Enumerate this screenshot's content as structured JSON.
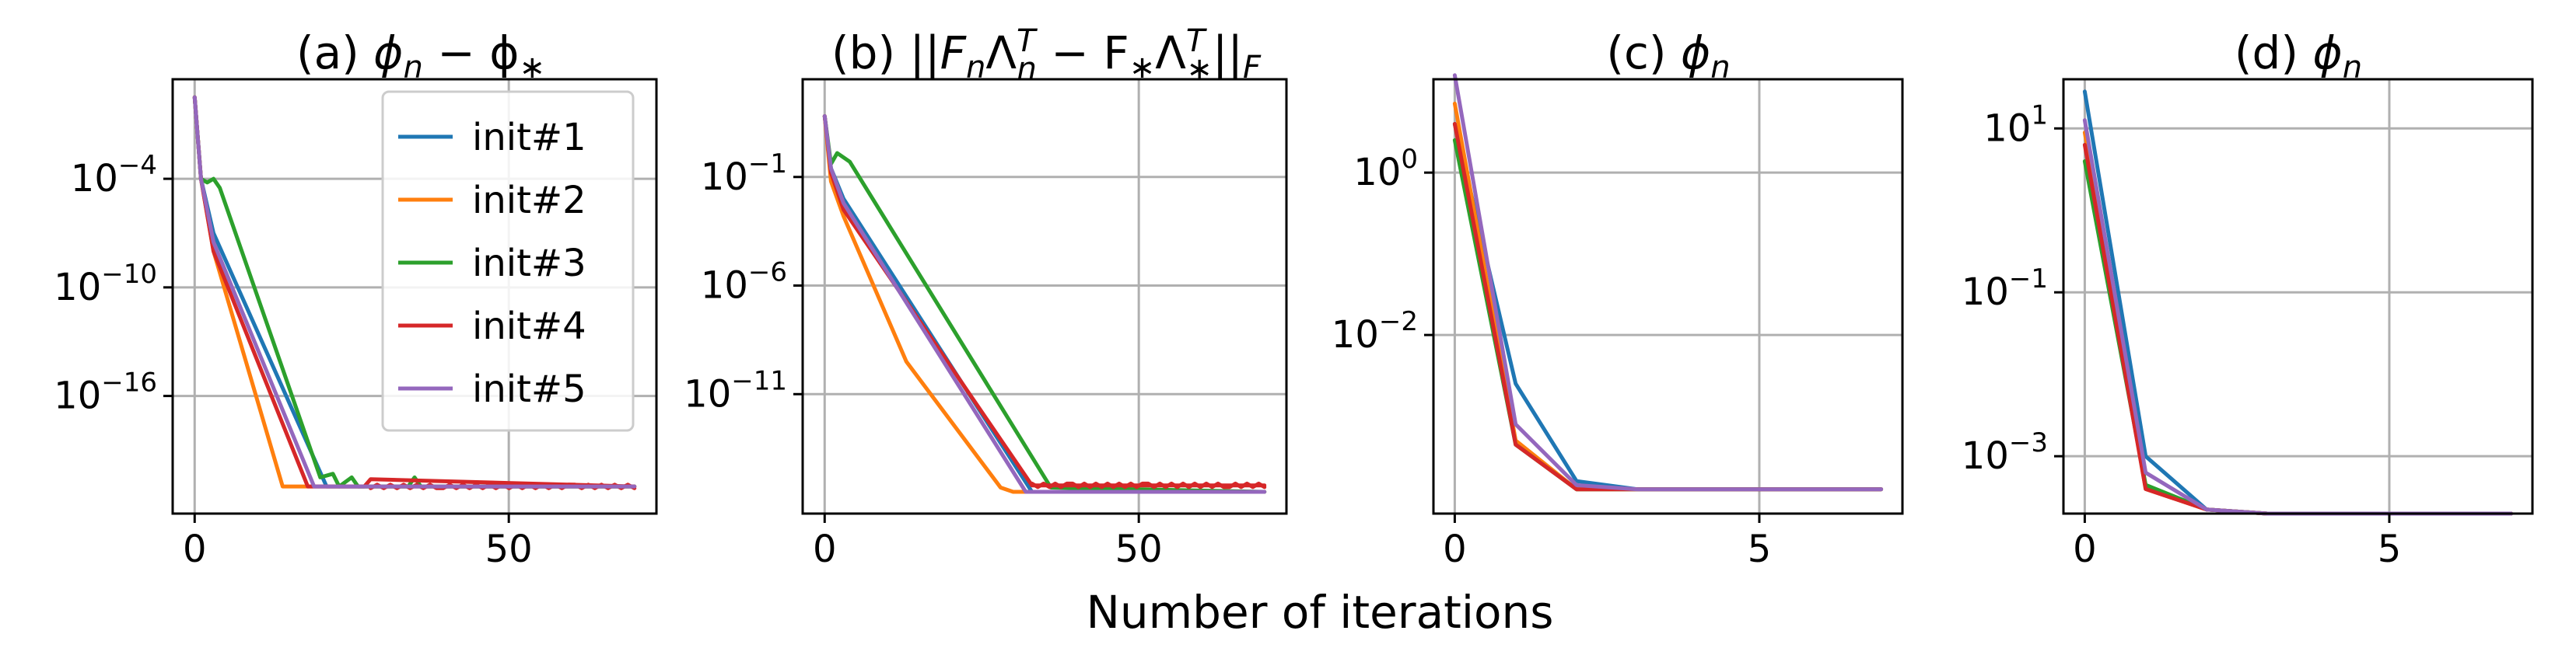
{
  "figure": {
    "xlabel": "Number of iterations"
  },
  "chart_data": [
    {
      "type": "line",
      "title": "(a) ϕn − ϕ∗",
      "title_parts": {
        "prefix": "(a) ",
        "phi": "ϕ",
        "sub1": "n",
        "minus": " − ϕ",
        "sub2": "∗"
      },
      "xlabel": "",
      "ylabel": "",
      "yscale": "log",
      "xlim": [
        -3.5,
        73.5
      ],
      "ylim_log10": [
        -22.5,
        1.5
      ],
      "xticks": [
        0,
        50
      ],
      "xtick_labels": [
        "0",
        "50"
      ],
      "yticks_log10": [
        -4,
        -10,
        -16
      ],
      "ytick_labels": [
        {
          "base": "10",
          "exp": "−4"
        },
        {
          "base": "10",
          "exp": "−10"
        },
        {
          "base": "10",
          "exp": "−16"
        }
      ],
      "legend": {
        "position": "upper-right"
      },
      "series": [
        {
          "name": "init#1",
          "color": "#1f77b4",
          "x": [
            0,
            1,
            3,
            21,
            70
          ],
          "log10_y": [
            0.5,
            -4,
            -7,
            -21,
            -21
          ]
        },
        {
          "name": "init#2",
          "color": "#ff7f0e",
          "x": [
            0,
            1,
            3,
            14,
            70
          ],
          "log10_y": [
            0.5,
            -4,
            -8,
            -21,
            -21
          ]
        },
        {
          "name": "init#3",
          "color": "#2ca02c",
          "x": [
            0,
            1,
            2,
            3,
            4,
            20,
            22,
            23,
            25,
            26,
            27,
            34,
            35,
            36,
            70
          ],
          "log10_y": [
            0.5,
            -4,
            -4.2,
            -4,
            -4.5,
            -20.5,
            -20.3,
            -21,
            -20.5,
            -21,
            -21,
            -21,
            -20.5,
            -21,
            -21
          ]
        },
        {
          "name": "init#4",
          "color": "#d62728",
          "x": [
            0,
            1,
            3,
            18,
            27,
            28,
            70
          ],
          "log10_y": [
            0.5,
            -4,
            -8,
            -21,
            -21,
            -20.6,
            -21
          ],
          "tail_wiggle": true
        },
        {
          "name": "init#5",
          "color": "#9467bd",
          "x": [
            0,
            1,
            3,
            19,
            70
          ],
          "log10_y": [
            0.5,
            -4,
            -7.5,
            -21,
            -21
          ]
        }
      ]
    },
    {
      "type": "line",
      "title": "(b) ||FnΛnT − F∗Λ∗T||F",
      "title_parts": {
        "t1": "(b) ||",
        "t2": "F",
        "t3": "n",
        "t4": "Λ",
        "t5": "T",
        "t6": "n",
        "t7": " − F",
        "t8": "∗",
        "t9": "Λ",
        "t10": "T",
        "t11": "∗",
        "t12": "||",
        "t13": "F"
      },
      "xlabel": "",
      "ylabel": "",
      "yscale": "log",
      "xlim": [
        -3.5,
        73.5
      ],
      "ylim_log10": [
        -16.5,
        3.5
      ],
      "xticks": [
        0,
        50
      ],
      "xtick_labels": [
        "0",
        "50"
      ],
      "yticks_log10": [
        -1,
        -6,
        -11
      ],
      "ytick_labels": [
        {
          "base": "10",
          "exp": "−1"
        },
        {
          "base": "10",
          "exp": "−6"
        },
        {
          "base": "10",
          "exp": "−11"
        }
      ],
      "series": [
        {
          "name": "init#1",
          "color": "#1f77b4",
          "x": [
            0,
            1,
            3,
            33,
            70
          ],
          "log10_y": [
            1.8,
            -0.6,
            -2,
            -15.5,
            -15.5
          ]
        },
        {
          "name": "init#2",
          "color": "#ff7f0e",
          "x": [
            0,
            1,
            3,
            13,
            28,
            30,
            70
          ],
          "log10_y": [
            1.8,
            -1.2,
            -2.8,
            -9.5,
            -15.3,
            -15.5,
            -15.5
          ]
        },
        {
          "name": "init#3",
          "color": "#2ca02c",
          "x": [
            0,
            1,
            2,
            4,
            36,
            70
          ],
          "log10_y": [
            1.8,
            -0.4,
            0.1,
            -0.3,
            -15.3,
            -15.5
          ]
        },
        {
          "name": "init#4",
          "color": "#d62728",
          "x": [
            0,
            1,
            3,
            33,
            70
          ],
          "log10_y": [
            1.8,
            -0.8,
            -2.5,
            -15.2,
            -15.2
          ],
          "tail_wiggle": true
        },
        {
          "name": "init#5",
          "color": "#9467bd",
          "x": [
            0,
            1,
            3,
            32,
            70
          ],
          "log10_y": [
            1.8,
            -0.6,
            -2.2,
            -15.5,
            -15.5
          ]
        }
      ]
    },
    {
      "type": "line",
      "title": "(c) ϕn",
      "title_parts": {
        "prefix": "(c) ",
        "phi": "ϕ",
        "sub1": "n"
      },
      "xlabel": "",
      "ylabel": "",
      "yscale": "log",
      "xlim": [
        -0.35,
        7.35
      ],
      "ylim_log10": [
        -4.2,
        1.15
      ],
      "xticks": [
        0,
        5
      ],
      "xtick_labels": [
        "0",
        "5"
      ],
      "yticks_log10": [
        0,
        -2
      ],
      "ytick_labels": [
        {
          "base": "10",
          "exp": "0"
        },
        {
          "base": "10",
          "exp": "−2"
        }
      ],
      "series": [
        {
          "name": "init#1",
          "color": "#1f77b4",
          "x": [
            0,
            1,
            2,
            3,
            7
          ],
          "log10_y": [
            0.6,
            -2.6,
            -3.8,
            -3.9,
            -3.9
          ]
        },
        {
          "name": "init#2",
          "color": "#ff7f0e",
          "x": [
            0,
            1,
            2,
            3,
            7
          ],
          "log10_y": [
            0.85,
            -3.3,
            -3.9,
            -3.9,
            -3.9
          ]
        },
        {
          "name": "init#3",
          "color": "#2ca02c",
          "x": [
            0,
            1,
            2,
            3,
            7
          ],
          "log10_y": [
            0.4,
            -3.35,
            -3.9,
            -3.9,
            -3.9
          ]
        },
        {
          "name": "init#4",
          "color": "#d62728",
          "x": [
            0,
            1,
            2,
            3,
            7
          ],
          "log10_y": [
            0.6,
            -3.35,
            -3.9,
            -3.9,
            -3.9
          ]
        },
        {
          "name": "init#5",
          "color": "#9467bd",
          "x": [
            0,
            1,
            2,
            3,
            7
          ],
          "log10_y": [
            1.2,
            -3.1,
            -3.85,
            -3.9,
            -3.9
          ]
        }
      ]
    },
    {
      "type": "line",
      "title": "(d) ϕn",
      "title_parts": {
        "prefix": "(d) ",
        "phi": "ϕ",
        "sub1": "n"
      },
      "xlabel": "",
      "ylabel": "",
      "yscale": "log",
      "xlim": [
        -0.35,
        7.35
      ],
      "ylim_log10": [
        -3.7,
        1.6
      ],
      "xticks": [
        0,
        5
      ],
      "xtick_labels": [
        "0",
        "5"
      ],
      "yticks_log10": [
        1,
        -1,
        -3
      ],
      "ytick_labels": [
        {
          "base": "10",
          "exp": "1"
        },
        {
          "base": "10",
          "exp": "−1"
        },
        {
          "base": "10",
          "exp": "−3"
        }
      ],
      "series": [
        {
          "name": "init#1",
          "color": "#1f77b4",
          "x": [
            0,
            1,
            2,
            3,
            7
          ],
          "log10_y": [
            1.45,
            -3.0,
            -3.65,
            -3.7,
            -3.7
          ]
        },
        {
          "name": "init#2",
          "color": "#ff7f0e",
          "x": [
            0,
            1,
            2,
            3,
            7
          ],
          "log10_y": [
            0.95,
            -3.4,
            -3.65,
            -3.7,
            -3.7
          ]
        },
        {
          "name": "init#3",
          "color": "#2ca02c",
          "x": [
            0,
            1,
            2,
            3,
            7
          ],
          "log10_y": [
            0.6,
            -3.35,
            -3.65,
            -3.7,
            -3.7
          ]
        },
        {
          "name": "init#4",
          "color": "#d62728",
          "x": [
            0,
            1,
            2,
            3,
            7
          ],
          "log10_y": [
            0.8,
            -3.4,
            -3.65,
            -3.7,
            -3.7
          ]
        },
        {
          "name": "init#5",
          "color": "#9467bd",
          "x": [
            0,
            1,
            2,
            3,
            7
          ],
          "log10_y": [
            1.1,
            -3.2,
            -3.65,
            -3.7,
            -3.7
          ]
        }
      ]
    }
  ]
}
